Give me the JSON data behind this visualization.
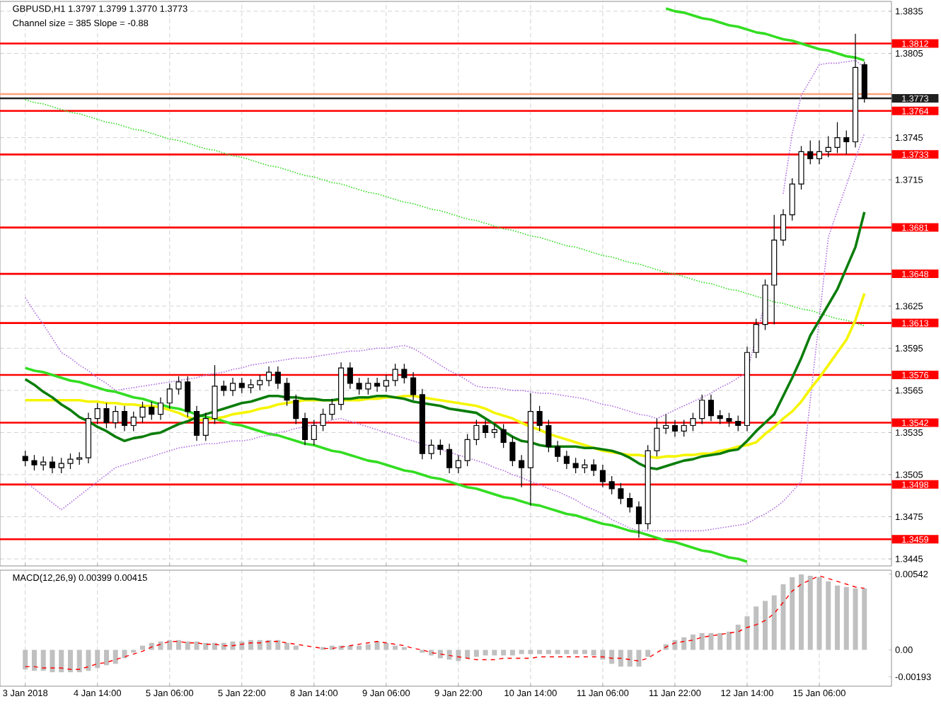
{
  "chart_data": [
    {
      "type": "candlestick",
      "color": "#000000",
      "annotations": [
        "GBPUSD,H1 1.3797 1.3799 1.3770 1.3773",
        "Channel size = 385 Slope = -0.88"
      ],
      "categories": [
        null,
        null,
        null,
        null,
        null,
        null,
        null,
        null,
        null,
        null,
        null,
        null,
        null,
        null,
        null,
        null,
        null,
        null,
        null,
        null,
        null,
        null,
        null,
        null,
        null,
        null,
        null,
        null,
        null,
        null,
        null,
        null,
        null,
        null,
        null,
        null,
        null,
        null,
        null,
        null,
        null,
        null,
        null,
        null,
        null,
        null,
        null,
        null,
        null,
        null,
        null,
        null,
        null,
        null,
        null,
        null,
        null,
        null,
        null,
        null,
        null,
        null,
        null,
        null,
        null,
        null,
        null,
        null,
        null,
        null,
        null,
        null,
        null,
        null,
        null,
        null,
        null,
        null,
        null,
        null,
        null,
        null,
        null,
        null,
        null,
        null,
        null,
        null,
        null,
        null,
        null,
        null,
        null,
        null
      ],
      "ohlc": [
        [
          1.3518,
          1.3522,
          1.3511,
          1.3515
        ],
        [
          1.3515,
          1.3519,
          1.3508,
          1.3512
        ],
        [
          1.3512,
          1.3518,
          1.3508,
          1.3514
        ],
        [
          1.3514,
          1.3518,
          1.3506,
          1.351
        ],
        [
          1.351,
          1.3517,
          1.3506,
          1.3513
        ],
        [
          1.3513,
          1.352,
          1.3509,
          1.3516
        ],
        [
          1.3516,
          1.3521,
          1.3512,
          1.3517
        ],
        [
          1.3517,
          1.3549,
          1.3513,
          1.3545
        ],
        [
          1.3545,
          1.3556,
          1.3541,
          1.3552
        ],
        [
          1.3552,
          1.3556,
          1.3538,
          1.3542
        ],
        [
          1.3542,
          1.3554,
          1.3538,
          1.355
        ],
        [
          1.355,
          1.3554,
          1.3536,
          1.354
        ],
        [
          1.354,
          1.355,
          1.3536,
          1.3546
        ],
        [
          1.3546,
          1.3557,
          1.3542,
          1.3553
        ],
        [
          1.3553,
          1.3557,
          1.3544,
          1.3548
        ],
        [
          1.3548,
          1.356,
          1.3544,
          1.3556
        ],
        [
          1.3556,
          1.357,
          1.3552,
          1.3566
        ],
        [
          1.3566,
          1.3575,
          1.3562,
          1.3571
        ],
        [
          1.3571,
          1.3575,
          1.3546,
          1.355
        ],
        [
          1.355,
          1.3554,
          1.3529,
          1.3533
        ],
        [
          1.3533,
          1.3549,
          1.3529,
          1.3545
        ],
        [
          1.3545,
          1.3583,
          1.3541,
          1.3568
        ],
        [
          1.3568,
          1.3572,
          1.3561,
          1.3565
        ],
        [
          1.3565,
          1.3574,
          1.3561,
          1.357
        ],
        [
          1.357,
          1.3574,
          1.3563,
          1.3567
        ],
        [
          1.3567,
          1.3573,
          1.3563,
          1.3569
        ],
        [
          1.3569,
          1.3576,
          1.3565,
          1.3572
        ],
        [
          1.3572,
          1.3582,
          1.3568,
          1.3578
        ],
        [
          1.3578,
          1.3582,
          1.3566,
          1.357
        ],
        [
          1.357,
          1.3574,
          1.3554,
          1.3558
        ],
        [
          1.3558,
          1.3562,
          1.3541,
          1.3545
        ],
        [
          1.3545,
          1.3549,
          1.3526,
          1.353
        ],
        [
          1.353,
          1.3544,
          1.3526,
          1.354
        ],
        [
          1.354,
          1.3552,
          1.3536,
          1.3548
        ],
        [
          1.3548,
          1.3559,
          1.3544,
          1.3555
        ],
        [
          1.3555,
          1.3585,
          1.3551,
          1.3581
        ],
        [
          1.3581,
          1.3585,
          1.3566,
          1.357
        ],
        [
          1.357,
          1.3574,
          1.3562,
          1.3566
        ],
        [
          1.3566,
          1.3574,
          1.3562,
          1.357
        ],
        [
          1.357,
          1.3574,
          1.3564,
          1.3568
        ],
        [
          1.3568,
          1.3576,
          1.3564,
          1.3572
        ],
        [
          1.3572,
          1.3584,
          1.3568,
          1.358
        ],
        [
          1.358,
          1.3584,
          1.357,
          1.3574
        ],
        [
          1.3574,
          1.3578,
          1.3558,
          1.3562
        ],
        [
          1.3562,
          1.3566,
          1.3516,
          1.352
        ],
        [
          1.352,
          1.353,
          1.3516,
          1.3526
        ],
        [
          1.3526,
          1.353,
          1.3519,
          1.3523
        ],
        [
          1.3523,
          1.3527,
          1.3506,
          1.351
        ],
        [
          1.351,
          1.3519,
          1.3506,
          1.3515
        ],
        [
          1.3515,
          1.3534,
          1.3511,
          1.353
        ],
        [
          1.353,
          1.3544,
          1.3526,
          1.354
        ],
        [
          1.354,
          1.3544,
          1.3531,
          1.3535
        ],
        [
          1.3535,
          1.3541,
          1.3531,
          1.3537
        ],
        [
          1.3537,
          1.3541,
          1.3524,
          1.3528
        ],
        [
          1.3528,
          1.3532,
          1.3511,
          1.3515
        ],
        [
          1.3515,
          1.3519,
          1.3496,
          1.351
        ],
        [
          1.351,
          1.3563,
          1.3483,
          1.355
        ],
        [
          1.355,
          1.3554,
          1.3536,
          1.354
        ],
        [
          1.354,
          1.3544,
          1.3521,
          1.3525
        ],
        [
          1.3525,
          1.3529,
          1.3514,
          1.3518
        ],
        [
          1.3518,
          1.3522,
          1.3509,
          1.3513
        ],
        [
          1.3513,
          1.3517,
          1.3506,
          1.351
        ],
        [
          1.351,
          1.3516,
          1.3506,
          1.3512
        ],
        [
          1.3512,
          1.3516,
          1.3504,
          1.3508
        ],
        [
          1.3508,
          1.3512,
          1.3496,
          1.35
        ],
        [
          1.35,
          1.3504,
          1.3491,
          1.3495
        ],
        [
          1.3495,
          1.3499,
          1.3484,
          1.3488
        ],
        [
          1.3488,
          1.3492,
          1.3478,
          1.3482
        ],
        [
          1.3482,
          1.3486,
          1.346,
          1.347
        ],
        [
          1.347,
          1.3526,
          1.3466,
          1.3522
        ],
        [
          1.3522,
          1.3545,
          1.3518,
          1.3538
        ],
        [
          1.3538,
          1.3548,
          1.3534,
          1.354
        ],
        [
          1.354,
          1.3544,
          1.3532,
          1.3536
        ],
        [
          1.3536,
          1.3544,
          1.3532,
          1.354
        ],
        [
          1.354,
          1.3549,
          1.3536,
          1.3545
        ],
        [
          1.3545,
          1.3562,
          1.3541,
          1.3558
        ],
        [
          1.3558,
          1.3562,
          1.3543,
          1.3547
        ],
        [
          1.3547,
          1.3551,
          1.3541,
          1.3545
        ],
        [
          1.3545,
          1.3549,
          1.3539,
          1.3543
        ],
        [
          1.3543,
          1.3547,
          1.3536,
          1.354
        ],
        [
          1.354,
          1.3596,
          1.3536,
          1.3592
        ],
        [
          1.3592,
          1.3616,
          1.3588,
          1.3612
        ],
        [
          1.3612,
          1.3644,
          1.3608,
          1.364
        ],
        [
          1.364,
          1.369,
          1.3612,
          1.3672
        ],
        [
          1.3672,
          1.3694,
          1.3668,
          1.369
        ],
        [
          1.369,
          1.3716,
          1.3686,
          1.3712
        ],
        [
          1.3712,
          1.3739,
          1.3708,
          1.3735
        ],
        [
          1.3735,
          1.3743,
          1.3726,
          1.373
        ],
        [
          1.373,
          1.3743,
          1.3726,
          1.3735
        ],
        [
          1.3735,
          1.3746,
          1.3731,
          1.3738
        ],
        [
          1.3738,
          1.3756,
          1.3734,
          1.3745
        ],
        [
          1.3745,
          1.375,
          1.3733,
          1.3742
        ],
        [
          1.3742,
          1.3819,
          1.3738,
          1.3795
        ],
        [
          1.3797,
          1.3799,
          1.377,
          1.3773
        ]
      ],
      "series": [
        {
          "type": "line",
          "color": "#33dd22",
          "line_style": "solid",
          "values": [
            null,
            null,
            null,
            null,
            null,
            null,
            null,
            null,
            null,
            null,
            null,
            null,
            null,
            null,
            null,
            null,
            null,
            null,
            null,
            null,
            null,
            null,
            null,
            null,
            null,
            null,
            null,
            null,
            null,
            null,
            null,
            null,
            null,
            null,
            null,
            null,
            null,
            null,
            null,
            null,
            null,
            null,
            null,
            null,
            null,
            null,
            null,
            null,
            null,
            null,
            null,
            null,
            null,
            null,
            null,
            null,
            null,
            null,
            null,
            null,
            null,
            null,
            null,
            null,
            null,
            null,
            null,
            null,
            null,
            null,
            null,
            1.3837,
            1.3835,
            1.3834,
            1.3832,
            1.383,
            1.3829,
            1.3827,
            1.3825,
            1.3824,
            1.3822,
            1.382,
            1.3819,
            1.3817,
            1.3815,
            1.3814,
            1.3812,
            1.381,
            1.3808,
            1.3807,
            1.3805,
            1.3803,
            1.3802,
            1.38
          ]
        },
        {
          "type": "line",
          "color": "#33dd22",
          "line_style": "solid",
          "values": [
            1.3581,
            1.3579,
            1.3578,
            1.3576,
            1.3574,
            1.3572,
            1.3571,
            1.3569,
            1.3567,
            1.3565,
            1.3564,
            1.3562,
            1.356,
            1.3559,
            1.3557,
            1.3555,
            1.3553,
            1.3552,
            1.355,
            1.3548,
            1.3546,
            1.3545,
            1.3543,
            1.3541,
            1.354,
            1.3538,
            1.3536,
            1.3534,
            1.3533,
            1.3531,
            1.3529,
            1.3527,
            1.3526,
            1.3524,
            1.3522,
            1.3521,
            1.3519,
            1.3517,
            1.3515,
            1.3514,
            1.3512,
            1.351,
            1.3508,
            1.3507,
            1.3505,
            1.3503,
            1.3502,
            1.35,
            1.3498,
            1.3496,
            1.3495,
            1.3493,
            1.3491,
            1.3489,
            1.3488,
            1.3486,
            1.3484,
            1.3483,
            1.3481,
            1.3479,
            1.3477,
            1.3476,
            1.3474,
            1.3472,
            1.347,
            1.3469,
            1.3467,
            1.3465,
            1.3464,
            1.3462,
            1.346,
            1.3458,
            1.3457,
            1.3455,
            1.3453,
            1.3451,
            1.345,
            1.3448,
            1.3446,
            1.3445,
            1.3443,
            null,
            null,
            null,
            null,
            null,
            null,
            null,
            null,
            null,
            null,
            null,
            null,
            null
          ]
        },
        {
          "type": "line",
          "color": "#33dd22",
          "line_style": "dotted",
          "values": [
            1.3772,
            1.377,
            1.3769,
            1.3767,
            1.3765,
            1.3763,
            1.3762,
            1.376,
            1.3758,
            1.3756,
            1.3755,
            1.3753,
            1.3751,
            1.375,
            1.3748,
            1.3746,
            1.3744,
            1.3743,
            1.3741,
            1.3739,
            1.3737,
            1.3736,
            1.3734,
            1.3732,
            1.3731,
            1.3729,
            1.3727,
            1.3725,
            1.3724,
            1.3722,
            1.372,
            1.3718,
            1.3717,
            1.3715,
            1.3713,
            1.3712,
            1.371,
            1.3708,
            1.3706,
            1.3705,
            1.3703,
            1.3701,
            1.3699,
            1.3698,
            1.3696,
            1.3694,
            1.3693,
            1.3691,
            1.3689,
            1.3687,
            1.3686,
            1.3684,
            1.3682,
            1.368,
            1.3679,
            1.3677,
            1.3675,
            1.3674,
            1.3672,
            1.367,
            1.3668,
            1.3667,
            1.3665,
            1.3663,
            1.3661,
            1.366,
            1.3658,
            1.3656,
            1.3655,
            1.3653,
            1.3651,
            1.3649,
            1.3648,
            1.3646,
            1.3644,
            1.3642,
            1.3641,
            1.3639,
            1.3637,
            1.3636,
            1.3634,
            1.3632,
            1.363,
            1.3628,
            1.3627,
            1.3625,
            1.3623,
            1.3622,
            1.362,
            1.3618,
            1.3616,
            1.3615,
            1.3613,
            1.3611
          ]
        },
        {
          "type": "line",
          "color": "#b070e0",
          "line_style": "dotted",
          "values": [
            1.3631,
            1.3621,
            1.3612,
            1.3602,
            1.3592,
            1.3588,
            1.3583,
            1.3579,
            1.3574,
            1.357,
            1.3565,
            1.3566,
            1.3567,
            1.3568,
            1.3569,
            1.357,
            1.3571,
            1.3572,
            1.3573,
            1.3574,
            1.3576,
            1.3577,
            1.3578,
            1.358,
            1.3581,
            1.3583,
            1.3584,
            1.3585,
            1.3586,
            1.3587,
            1.3588,
            1.3588,
            1.3589,
            1.359,
            1.3591,
            1.3592,
            1.3593,
            1.3593,
            1.3594,
            1.3595,
            1.3595,
            1.3596,
            1.3597,
            1.3595,
            1.3591,
            1.3587,
            1.3583,
            1.3579,
            1.3576,
            1.3572,
            1.3568,
            1.3567,
            1.3567,
            1.3566,
            1.3565,
            1.3565,
            1.3564,
            1.3563,
            1.3563,
            1.3562,
            1.3561,
            1.356,
            1.3559,
            1.3557,
            1.3555,
            1.3554,
            1.3552,
            1.355,
            1.3548,
            1.3547,
            1.3545,
            1.3548,
            1.3551,
            1.3554,
            1.3557,
            1.356,
            1.3563,
            1.3567,
            1.357,
            1.3574,
            1.3578,
            1.3603,
            1.3628,
            null,
            1.3705,
            1.3748,
            1.3775,
            1.3786,
            1.3797,
            1.3798,
            1.3798,
            1.3799,
            1.38,
            1.3795
          ]
        },
        {
          "type": "line",
          "color": "#b070e0",
          "line_style": "dotted",
          "values": [
            1.35,
            1.3495,
            1.349,
            1.3485,
            1.348,
            1.3485,
            1.349,
            1.3495,
            1.35,
            1.3505,
            1.351,
            1.3512,
            1.3514,
            1.3516,
            1.3518,
            1.352,
            1.3522,
            1.3524,
            1.3525,
            1.3526,
            1.3527,
            1.3527,
            1.3528,
            1.3529,
            1.3529,
            1.353,
            1.3532,
            1.3533,
            1.3535,
            1.3536,
            1.3538,
            1.3539,
            1.3541,
            1.3542,
            1.3544,
            1.3545,
            1.3543,
            1.3541,
            1.3539,
            1.3537,
            1.3535,
            1.3533,
            1.3531,
            1.3529,
            1.3527,
            1.3525,
            1.3523,
            1.3521,
            1.3519,
            1.3517,
            1.3515,
            1.3513,
            1.351,
            1.3508,
            1.3505,
            1.3503,
            1.35,
            1.3498,
            1.3495,
            1.3493,
            1.349,
            1.3487,
            1.3483,
            1.348,
            1.3477,
            1.3473,
            1.347,
            1.3467,
            1.3465,
            1.3465,
            1.3465,
            1.3465,
            1.3465,
            1.3465,
            1.3465,
            1.3465,
            1.3466,
            1.3467,
            1.3468,
            1.3469,
            1.347,
            1.3474,
            1.3477,
            1.3481,
            1.3486,
            1.3493,
            1.35,
            1.3558,
            1.3616,
            1.3674,
            1.3693,
            1.3711,
            1.373,
            1.3748
          ]
        },
        {
          "type": "line",
          "color": "#f5f500",
          "line_style": "solid",
          "values": [
            1.3558,
            1.3558,
            1.3558,
            1.3558,
            1.3558,
            1.3558,
            1.3558,
            1.3557,
            1.3557,
            1.3556,
            1.3556,
            1.3555,
            1.3555,
            1.3554,
            1.3554,
            1.3553,
            1.3551,
            1.3549,
            1.3546,
            1.3544,
            1.3544,
            1.3545,
            1.3546,
            1.3548,
            1.3549,
            1.355,
            1.3552,
            1.3553,
            1.3555,
            1.3556,
            1.3557,
            1.3558,
            1.3558,
            1.3558,
            1.3558,
            1.3558,
            1.3558,
            1.3558,
            1.3559,
            1.3559,
            1.356,
            1.356,
            1.3561,
            1.3561,
            1.356,
            1.3559,
            1.3558,
            1.3557,
            1.3556,
            1.3555,
            1.3554,
            1.3552,
            1.3549,
            1.3547,
            1.3545,
            1.3542,
            1.3539,
            1.3537,
            1.3534,
            1.3532,
            1.353,
            1.3528,
            1.3526,
            1.3524,
            1.3522,
            1.3521,
            1.352,
            1.3519,
            1.3519,
            1.3518,
            1.3517,
            1.3518,
            1.3518,
            1.3519,
            1.3519,
            1.352,
            1.352,
            1.3522,
            1.3523,
            1.3525,
            1.3526,
            1.3528,
            1.3534,
            1.3539,
            1.3545,
            1.355,
            1.3557,
            1.3566,
            1.3574,
            1.3583,
            1.3592,
            1.3601,
            1.3615,
            1.3634
          ]
        },
        {
          "type": "line",
          "color": "#0a7d0a",
          "line_style": "solid",
          "values": [
            1.3573,
            1.3569,
            1.3564,
            1.356,
            1.3555,
            1.3551,
            1.3546,
            1.3543,
            1.3539,
            1.3536,
            1.3532,
            1.3529,
            1.3531,
            1.3532,
            1.3534,
            1.3535,
            1.3538,
            1.3541,
            1.3543,
            1.3546,
            1.3548,
            1.355,
            1.3552,
            1.3554,
            1.3556,
            1.3557,
            1.3559,
            1.3561,
            1.3561,
            1.356,
            1.356,
            1.3559,
            1.3559,
            1.3558,
            1.3558,
            1.3559,
            1.3559,
            1.356,
            1.356,
            1.3561,
            1.3561,
            1.356,
            1.3559,
            1.3557,
            1.3556,
            1.3555,
            1.3554,
            1.3552,
            1.3551,
            1.355,
            1.3549,
            1.3545,
            1.3541,
            1.3536,
            1.3532,
            1.3529,
            1.3528,
            1.3526,
            1.3525,
            1.3525,
            1.3525,
            1.3525,
            1.3524,
            1.3524,
            1.3523,
            1.3522,
            1.352,
            1.3517,
            1.3513,
            1.351,
            1.3509,
            1.3511,
            1.3513,
            1.3515,
            1.3516,
            1.3518,
            1.3519,
            1.352,
            1.3522,
            1.3523,
            1.3529,
            1.3536,
            1.3542,
            1.3548,
            1.3561,
            1.3574,
            1.3588,
            1.3604,
            1.3615,
            1.3626,
            1.3637,
            1.3652,
            1.3667,
            1.3692
          ]
        }
      ],
      "ylim": [
        1.344,
        1.3842
      ],
      "yticks": [
        1.3835,
        1.3805,
        1.3745,
        1.3715,
        1.3625,
        1.3595,
        1.3565,
        1.3535,
        1.3505,
        1.3475,
        1.3445
      ],
      "tick_labels": "y",
      "grid": true,
      "ref_lines": [
        {
          "axis": "y",
          "value": 1.3812,
          "label": "1.3812",
          "color": "#ff0000"
        },
        {
          "axis": "y",
          "value": 1.3776,
          "color": "#ffa07a"
        },
        {
          "axis": "y",
          "value": 1.3773,
          "label": "1.3773",
          "color": "#202020"
        },
        {
          "axis": "y",
          "value": 1.3764,
          "label": "1.3764",
          "color": "#ff0000"
        },
        {
          "axis": "y",
          "value": 1.3733,
          "label": "1.3733",
          "color": "#ff0000"
        },
        {
          "axis": "y",
          "value": 1.3681,
          "label": "1.3681",
          "color": "#ff0000"
        },
        {
          "axis": "y",
          "value": 1.3648,
          "label": "1.3648",
          "color": "#ff0000"
        },
        {
          "axis": "y",
          "value": 1.3613,
          "label": "1.3613",
          "color": "#ff0000"
        },
        {
          "axis": "y",
          "value": 1.3576,
          "label": "1.3576",
          "color": "#ff0000"
        },
        {
          "axis": "y",
          "value": 1.3542,
          "label": "1.3542",
          "color": "#ff0000"
        },
        {
          "axis": "y",
          "value": 1.3498,
          "label": "1.3498",
          "color": "#ff0000"
        },
        {
          "axis": "y",
          "value": 1.3459,
          "label": "1.3459",
          "color": "#ff0000"
        }
      ]
    },
    {
      "type": "bar",
      "annotations": [
        "MACD(12,26,9) 0.00399 0.00415"
      ],
      "categories": [
        "3 Jan 2018",
        null,
        null,
        null,
        null,
        null,
        null,
        null,
        "4 Jan 14:00",
        null,
        null,
        null,
        null,
        null,
        null,
        null,
        "5 Jan 06:00",
        null,
        null,
        null,
        null,
        null,
        null,
        null,
        "5 Jan 22:00",
        null,
        null,
        null,
        null,
        null,
        null,
        null,
        "8 Jan 14:00",
        null,
        null,
        null,
        null,
        null,
        null,
        null,
        "9 Jan 06:00",
        null,
        null,
        null,
        null,
        null,
        null,
        null,
        "9 Jan 22:00",
        null,
        null,
        null,
        null,
        null,
        null,
        null,
        "10 Jan 14:00",
        null,
        null,
        null,
        null,
        null,
        null,
        null,
        "11 Jan 06:00",
        null,
        null,
        null,
        null,
        null,
        null,
        null,
        "11 Jan 22:00",
        null,
        null,
        null,
        null,
        null,
        null,
        null,
        "12 Jan 14:00",
        null,
        null,
        null,
        null,
        null,
        null,
        null,
        "15 Jan 06:00",
        null,
        null,
        null,
        null,
        null
      ],
      "series": [
        {
          "type": "bar",
          "color": "#c0c0c0",
          "values": [
            -0.0014,
            -0.0015,
            -0.0015,
            -0.0016,
            -0.0016,
            -0.0016,
            -0.0016,
            -0.0015,
            -0.0013,
            -0.0011,
            -0.001,
            -0.0006,
            -0.0002,
            0.0003,
            0.0005,
            0.0006,
            0.0007,
            0.0007,
            0.0006,
            0.0006,
            0.0005,
            0.0005,
            0.0005,
            0.0006,
            0.0006,
            0.0007,
            0.0007,
            0.0007,
            0.0007,
            0.0005,
            0.0003,
            null,
            null,
            0.0002,
            0.0003,
            0.0003,
            0.0003,
            0.0003,
            0.0004,
            0.0006,
            0.0005,
            0.0003,
            0.0002,
            0.0,
            -0.0002,
            -0.0004,
            -0.0006,
            -0.0007,
            -0.0008,
            -0.0006,
            -0.0005,
            -0.0004,
            -0.0004,
            -0.0004,
            -0.0004,
            -0.0003,
            -0.0003,
            -0.0003,
            -0.0003,
            -0.0003,
            -0.0003,
            -0.0003,
            -0.0003,
            -0.0004,
            -0.0007,
            -0.001,
            -0.0012,
            -0.0012,
            -0.0012,
            -0.0005,
            null,
            0.0004,
            0.0007,
            0.0009,
            0.0011,
            0.0012,
            0.0012,
            0.0012,
            0.0013,
            0.0018,
            0.0024,
            0.0031,
            0.0035,
            0.0039,
            0.0047,
            0.0052,
            0.0054,
            0.0053,
            0.0052,
            0.0049,
            0.0046,
            0.0045,
            0.0044,
            0.0044
          ]
        },
        {
          "type": "line",
          "color": "#ff0000",
          "line_style": "dashed",
          "values": [
            -0.0012,
            -0.0012,
            -0.0013,
            -0.0013,
            -0.0013,
            -0.0014,
            -0.0014,
            -0.0012,
            -0.001,
            -0.0009,
            -0.0007,
            -0.0005,
            -0.0003,
            -0.0001,
            0.0002,
            0.0004,
            0.0006,
            0.0006,
            0.0005,
            0.0005,
            0.0004,
            0.0004,
            0.0003,
            0.0003,
            0.0004,
            0.0005,
            0.0005,
            0.0006,
            0.0006,
            0.0005,
            0.0004,
            0.0003,
            0.0002,
            0.0001,
            0.0001,
            0.0002,
            0.0003,
            0.0004,
            0.0005,
            0.0006,
            0.0005,
            0.0004,
            0.0003,
            0.0001,
            0.0,
            -0.0002,
            -0.0003,
            -0.0004,
            -0.0005,
            -0.0006,
            -0.0007,
            -0.0007,
            -0.0007,
            -0.0006,
            -0.0006,
            -0.0006,
            -0.0006,
            -0.0005,
            -0.0005,
            -0.0005,
            -0.0005,
            -0.0005,
            -0.0005,
            -0.0005,
            -0.0005,
            -0.0006,
            -0.0006,
            -0.0007,
            -0.0008,
            -0.0006,
            -0.0002,
            0.0002,
            0.0005,
            0.0006,
            0.0007,
            0.0009,
            0.001,
            0.0011,
            0.0012,
            0.0013,
            0.0016,
            0.0018,
            0.0021,
            0.0026,
            0.0034,
            0.0042,
            0.0047,
            0.005,
            0.0053,
            0.0051,
            0.0049,
            0.0047,
            0.0045,
            0.0044
          ]
        }
      ],
      "ylim": [
        -0.0026,
        0.0057
      ],
      "yticks": [
        0.00542,
        {
          "value": 0,
          "label": "0.00"
        },
        -0.00193
      ],
      "grid": "x"
    }
  ]
}
